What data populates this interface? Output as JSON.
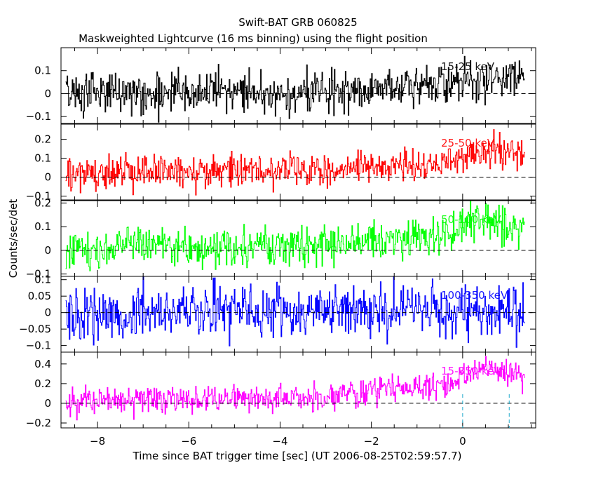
{
  "chart_data": {
    "type": "line",
    "title": "Swift-BAT GRB 060825",
    "subtitle": "Maskweighted Lightcurve (16 ms binning) using the flight position",
    "xlabel": "Time since BAT trigger time [sec] (UT 2006-08-25T02:59:57.7)",
    "ylabel": "Counts/sec/det",
    "xlim": [
      -8.8,
      1.6
    ],
    "x_ticks": [
      -8,
      -6,
      -4,
      -2,
      0
    ],
    "x_tick_labels": [
      "−8",
      "−6",
      "−4",
      "−2",
      "0"
    ],
    "x_start": -8.7,
    "x_end": 1.35,
    "bin_width": 0.016,
    "markers_x": [
      0.0,
      1.02
    ],
    "panels": [
      {
        "name": "15-25 keV",
        "label_text": "15-25 keV",
        "color": "#000000",
        "ylim": [
          -0.13,
          0.2
        ],
        "y_ticks": [
          -0.1,
          0,
          0.1
        ],
        "y_tick_labels": [
          "−0.1",
          "0",
          "0.1"
        ],
        "trend": [
          [
            -8.7,
            0.0
          ],
          [
            -3.0,
            0.01
          ],
          [
            -1.2,
            0.04
          ],
          [
            0.0,
            0.06
          ],
          [
            1.35,
            0.08
          ]
        ],
        "noise": 0.045
      },
      {
        "name": "25-50 keV",
        "label_text": "25-50 keV",
        "color": "#ff0000",
        "ylim": [
          -0.12,
          0.28
        ],
        "y_ticks": [
          -0.1,
          0,
          0.1,
          0.2
        ],
        "y_tick_labels": [
          "−0.1",
          "0",
          "0.1",
          "0.2"
        ],
        "trend": [
          [
            -8.7,
            0.02
          ],
          [
            -3.0,
            0.04
          ],
          [
            -1.2,
            0.07
          ],
          [
            -0.3,
            0.08
          ],
          [
            0.2,
            0.14
          ],
          [
            1.35,
            0.12
          ]
        ],
        "noise": 0.045
      },
      {
        "name": "50-100 keV",
        "label_text": "50-100 keV",
        "color": "#00ff00",
        "ylim": [
          -0.11,
          0.21
        ],
        "y_ticks": [
          -0.1,
          0,
          0.1,
          0.2
        ],
        "y_tick_labels": [
          "−0.1",
          "0",
          "0.1",
          "0.2"
        ],
        "trend": [
          [
            -8.7,
            0.01
          ],
          [
            -3.0,
            0.02
          ],
          [
            -1.2,
            0.05
          ],
          [
            -0.3,
            0.07
          ],
          [
            0.3,
            0.13
          ],
          [
            1.35,
            0.09
          ]
        ],
        "noise": 0.04
      },
      {
        "name": "100-350 keV",
        "label_text": "100-350 keV",
        "color": "#0000ff",
        "ylim": [
          -0.12,
          0.11
        ],
        "y_ticks": [
          -0.1,
          -0.05,
          0,
          0.05,
          0.1
        ],
        "y_tick_labels": [
          "−0.1",
          "−0.05",
          "0",
          "0.05",
          "0.1"
        ],
        "trend": [
          [
            -8.7,
            0.0
          ],
          [
            1.35,
            0.01
          ]
        ],
        "noise": 0.04
      },
      {
        "name": "15-350 keV",
        "label_text": "15-350 keV",
        "color": "#ff00ff",
        "ylim": [
          -0.25,
          0.52
        ],
        "y_ticks": [
          -0.2,
          0,
          0.2,
          0.4
        ],
        "y_tick_labels": [
          "−0.2",
          "0",
          "0.2",
          "0.4"
        ],
        "trend": [
          [
            -8.7,
            0.02
          ],
          [
            -3.0,
            0.06
          ],
          [
            -1.2,
            0.15
          ],
          [
            -0.3,
            0.2
          ],
          [
            0.3,
            0.36
          ],
          [
            1.35,
            0.28
          ]
        ],
        "noise": 0.07
      }
    ]
  }
}
